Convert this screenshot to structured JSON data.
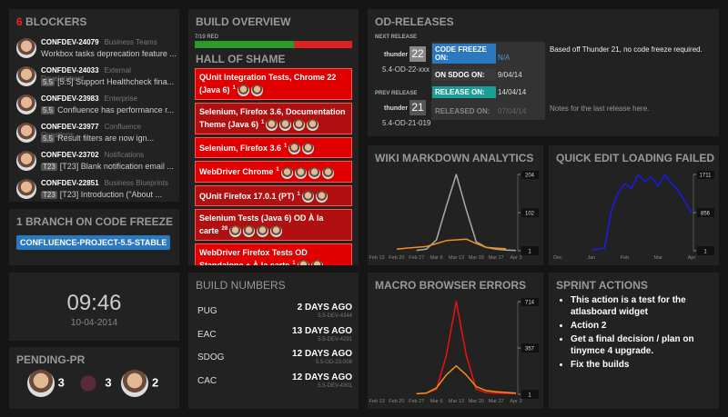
{
  "blockers": {
    "count": "6",
    "title": "BLOCKERS",
    "items": [
      {
        "key": "CONFDEV-24079",
        "project": "Business Teams",
        "summary": "Workbox tasks deprecation feature ..."
      },
      {
        "key": "CONFDEV-24033",
        "project": "External Development",
        "tag": "5.5",
        "summary": "[5.5] Support Healthcheck fina..."
      },
      {
        "key": "CONFDEV-23983",
        "project": "Enterprise",
        "tag": "5.5",
        "summary": "Confluence has performance r..."
      },
      {
        "key": "CONFDEV-23977",
        "project": "Confluence Questions",
        "tag": "5.5",
        "summary": "Result filters are now ign..."
      },
      {
        "key": "CONFDEV-23702",
        "project": "Notifications",
        "tag": "T23",
        "summary": "[T23] Blank notification email ..."
      },
      {
        "key": "CONFDEV-22851",
        "project": "Business Blueprints",
        "tag": "T23",
        "summary": "[T23] Introduction (\"About ..."
      }
    ]
  },
  "branch": {
    "title": "1 BRANCH ON CODE FREEZE",
    "name": "CONFLUENCE-PROJECT-5.5-STABLE"
  },
  "clock": {
    "time": "09:46",
    "date": "10-04-2014"
  },
  "pending_pr": {
    "title": "PENDING-PR",
    "counts": [
      "3",
      "3",
      "2"
    ]
  },
  "build_overview": {
    "title": "BUILD OVERVIEW",
    "progress_label": "7/19 RED",
    "red": 7,
    "total": 19,
    "hall_title": "HALL OF SHAME",
    "failures": [
      {
        "name": "QUnit Integration Tests, Chrome 22 (Java 6)",
        "count": "1",
        "color": "#e00000"
      },
      {
        "name": "Selenium, Firefox 3.6, Documentation Theme (Java 6)",
        "count": "1",
        "color": "#b01010"
      },
      {
        "name": "Selenium, Firefox 3.6",
        "count": "1",
        "color": "#e00000"
      },
      {
        "name": "WebDriver Chrome",
        "count": "1",
        "color": "#e00000"
      },
      {
        "name": "QUnit Firefox 17.0.1 (PT)",
        "count": "1",
        "color": "#b01010"
      },
      {
        "name": "Selenium Tests (Java 6) OD À la carte",
        "count": "28",
        "color": "#b01010"
      },
      {
        "name": "WebDriver Firefox Tests OD Standalone + À la carte",
        "count": "1",
        "color": "#e00000"
      }
    ]
  },
  "build_numbers": {
    "title": "BUILD NUMBERS",
    "rows": [
      {
        "name": "PUG",
        "ago": "2 DAYS AGO",
        "build": "5.5-DEV-4344"
      },
      {
        "name": "EAC",
        "ago": "13 DAYS AGO",
        "build": "5.5-DEV-4291"
      },
      {
        "name": "SDOG",
        "ago": "12 DAYS AGO",
        "build": "5.5-OD-23-008"
      },
      {
        "name": "CAC",
        "ago": "12 DAYS AGO",
        "build": "5.5-DEV-4301"
      }
    ]
  },
  "od_releases": {
    "title": "OD-RELEASES",
    "next": {
      "heading": "NEXT RELEASE",
      "codename": "thunder",
      "number": "22",
      "version": "5.4-OD-22-xxx",
      "dates": [
        {
          "label": "CODE FREEZE ON:",
          "value": "N/A",
          "color": "#2a78c0"
        },
        {
          "label": "ON SDOG ON:",
          "value": "9/04/14",
          "color": "#3a3a3a"
        },
        {
          "label": "RELEASE ON:",
          "value": "14/04/14",
          "color": "#1a9e96"
        }
      ],
      "note": "Based off Thunder 21, no code freeze required."
    },
    "prev": {
      "heading": "PREV RELEASE",
      "codename": "thunder",
      "number": "21",
      "version": "5.4-OD-21-019",
      "dates": [
        {
          "label": "RELEASED ON:",
          "value": "07/04/14",
          "color": "#333"
        }
      ],
      "note": "Notes for the last release here."
    }
  },
  "charts": [
    {
      "type": "line",
      "title": "WIKI MARKDOWN ANALYTICS",
      "categories": [
        "Feb 13",
        null,
        "Feb 20",
        null,
        "Feb 27",
        null,
        "Mar 6",
        null,
        "Mar 13",
        null,
        "Mar 20",
        null,
        "Mar 27",
        null,
        "Apr 3"
      ],
      "series": [
        {
          "color": "#aaaaaa",
          "values": [
            null,
            null,
            null,
            null,
            2,
            5,
            30,
            120,
            204,
            110,
            25,
            10,
            5,
            3,
            2
          ]
        },
        {
          "color": "#f0901e",
          "values": [
            null,
            null,
            5,
            8,
            10,
            12,
            20,
            28,
            30,
            32,
            20,
            10,
            8,
            6,
            null
          ]
        }
      ],
      "ylim": [
        1,
        204
      ],
      "yticks": [
        1,
        102,
        204
      ]
    },
    {
      "type": "line",
      "title": "QUICK EDIT LOADING FAILED",
      "categories": [
        "Dec",
        null,
        null,
        null,
        null,
        "Jan",
        null,
        null,
        null,
        null,
        "Feb",
        null,
        null,
        null,
        null,
        "Mar",
        null,
        null,
        null,
        null,
        "Apr"
      ],
      "series": [
        {
          "color": "#1a1aee",
          "values": [
            null,
            null,
            null,
            null,
            null,
            20,
            40,
            60,
            900,
            1300,
            1500,
            1400,
            1700,
            1550,
            1650,
            1450,
            1711,
            1500,
            1350,
            1100,
            856
          ]
        }
      ],
      "ylim": [
        1,
        1711
      ],
      "yticks": [
        1,
        856,
        1711
      ]
    },
    {
      "type": "line",
      "title": "MACRO BROWSER ERRORS",
      "categories": [
        "Feb 13",
        null,
        "Feb 20",
        null,
        "Feb 27",
        null,
        "Mar 6",
        null,
        "Mar 13",
        null,
        "Mar 20",
        null,
        "Mar 27",
        null,
        "Apr 3"
      ],
      "series": [
        {
          "color": "#ee1111",
          "values": [
            null,
            null,
            null,
            null,
            5,
            10,
            40,
            300,
            714,
            300,
            40,
            15,
            10,
            8,
            5
          ]
        },
        {
          "color": "#f0901e",
          "values": [
            null,
            null,
            null,
            null,
            5,
            10,
            50,
            150,
            220,
            150,
            60,
            30,
            20,
            15,
            10
          ]
        }
      ],
      "ylim": [
        1,
        714
      ],
      "yticks": [
        1,
        357,
        714
      ]
    }
  ],
  "sprint": {
    "title": "SPRINT ACTIONS",
    "items": [
      "This action is a test for the atlasboard widget",
      "Action 2",
      "Get a final decision / plan on tinymce 4 upgrade.",
      "Fix the builds"
    ]
  }
}
